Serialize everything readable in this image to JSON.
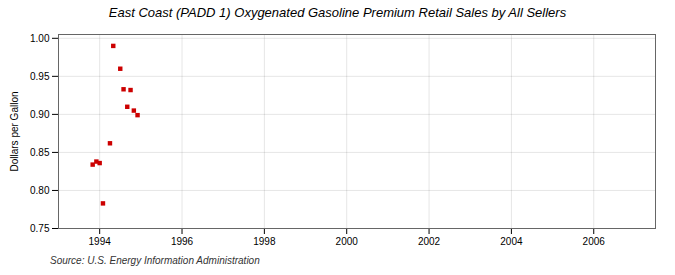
{
  "chart_data": {
    "type": "scatter",
    "title": "East Coast (PADD 1) Oxygenated Gasoline Premium Retail Sales by All Sellers",
    "ylabel": "Dollars per Gallon",
    "source": "Source: U.S. Energy Information Administration",
    "x": [
      1993.83,
      1993.92,
      1994.0,
      1994.08,
      1994.25,
      1994.33,
      1994.5,
      1994.58,
      1994.67,
      1994.75,
      1994.83,
      1994.92
    ],
    "values": [
      0.834,
      0.838,
      0.836,
      0.783,
      0.862,
      0.99,
      0.96,
      0.933,
      0.91,
      0.932,
      0.905,
      0.899
    ],
    "color": "#cc0000",
    "marker": "square",
    "xlim": [
      1993.0,
      2007.5
    ],
    "ylim": [
      0.75,
      1.005
    ],
    "xticks": [
      1994,
      1996,
      1998,
      2000,
      2002,
      2004,
      2006
    ],
    "yticks": [
      0.75,
      {
        "value": 0.8,
        "label": "0.80"
      },
      0.85,
      {
        "value": 0.9,
        "label": "0.90"
      },
      0.95,
      {
        "value": 1.0,
        "label": "1.00"
      }
    ],
    "grid": true
  }
}
